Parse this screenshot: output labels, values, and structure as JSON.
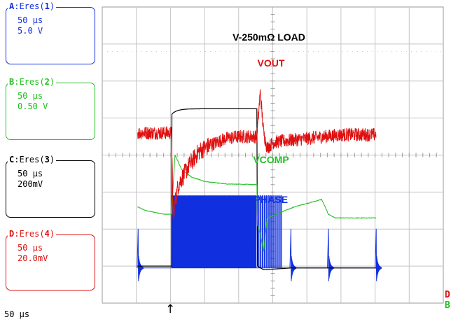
{
  "channels": [
    {
      "id": "A",
      "label": ":Eres(",
      "num": "1",
      "close": ")",
      "time": "50 µs",
      "scale": "5.0 V",
      "color": "#1030e0"
    },
    {
      "id": "B",
      "label": ":Eres(",
      "num": "2",
      "close": ")",
      "time": "50 µs",
      "scale": "0.50 V",
      "color": "#20c020"
    },
    {
      "id": "C",
      "label": ":Eres(",
      "num": "3",
      "close": ")",
      "time": "50 µs",
      "scale": "200mV",
      "color": "#000000"
    },
    {
      "id": "D",
      "label": ":Eres(",
      "num": "4",
      "close": ")",
      "time": "50 µs",
      "scale": "20.0mV",
      "color": "#e01010"
    }
  ],
  "timebase": "50 µs",
  "trigger_marker": "↑",
  "chart_data": {
    "type": "line",
    "title": "V-250mΩ LOAD",
    "grid": true,
    "divisions": {
      "x": 10,
      "y": 8
    },
    "time_per_div_us": 50,
    "load_step_us": [
      0,
      125
    ],
    "series": [
      {
        "name": "VOUT",
        "channel": "D",
        "color": "#e01010",
        "t_us": [
          -50,
          0,
          2,
          10,
          25,
          40,
          60,
          80,
          100,
          125,
          130,
          135,
          140,
          150,
          175,
          200,
          250,
          300
        ],
        "v_div": [
          0.6,
          0.6,
          -1.6,
          -0.8,
          -0.3,
          0.1,
          0.3,
          0.45,
          0.5,
          0.5,
          1.7,
          0.6,
          0.2,
          0.35,
          0.4,
          0.45,
          0.55,
          0.55
        ]
      },
      {
        "name": "VCOMP",
        "channel": "B",
        "color": "#20c020",
        "t_us": [
          -50,
          -38,
          -10,
          0,
          5,
          15,
          30,
          50,
          80,
          125,
          126,
          130,
          135,
          140,
          180,
          220,
          230,
          240,
          300
        ],
        "v_div": [
          -1.4,
          -1.5,
          -1.6,
          -1.6,
          0.0,
          -0.4,
          -0.6,
          -0.72,
          -0.78,
          -0.8,
          -1.9,
          -2.1,
          -2.6,
          -1.7,
          -1.4,
          -1.2,
          -1.6,
          -1.7,
          -1.7
        ]
      },
      {
        "name": "PHASE",
        "channel": "A",
        "color": "#1030e0",
        "state": "switching",
        "switching_window_us": [
          0,
          125
        ],
        "cluster_us": [
          -49,
          175,
          230,
          300
        ]
      },
      {
        "name": "V-250mΩ LOAD",
        "channel": "C",
        "color": "#000000",
        "t_us": [
          -50,
          0,
          0.5,
          5,
          20,
          125,
          126,
          135,
          175,
          300
        ],
        "v_div": [
          -3.0,
          -3.0,
          1.1,
          1.25,
          1.25,
          1.25,
          -3.0,
          -3.1,
          -3.05,
          -3.05
        ]
      }
    ]
  },
  "trace_labels": {
    "load": "V-250mΩ LOAD",
    "vout": "VOUT",
    "vcomp": "VCOMP",
    "phase": "PHASE"
  },
  "markers_right": [
    "D",
    "B"
  ]
}
